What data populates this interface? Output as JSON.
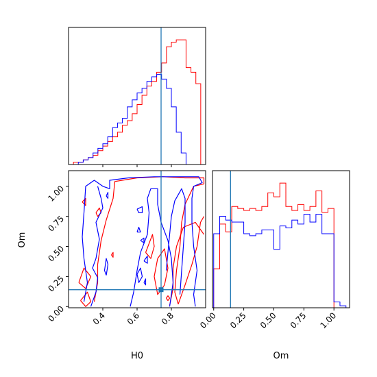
{
  "colors": {
    "series_a": "#ff0000",
    "series_b": "#0000ff",
    "truth": "#1f77b4"
  },
  "chart_data": [
    {
      "type": "histogram",
      "panel": "marginal H0",
      "xlim": [
        0.2,
        1.0
      ],
      "truth": 0.74,
      "ticks": [
        0.4,
        0.6,
        0.8
      ],
      "bins": [
        0.2,
        0.2286,
        0.2571,
        0.2857,
        0.3143,
        0.3429,
        0.3714,
        0.4,
        0.4286,
        0.4571,
        0.4857,
        0.5143,
        0.5429,
        0.5714,
        0.6,
        0.6286,
        0.6571,
        0.6857,
        0.7143,
        0.7429,
        0.7714,
        0.8,
        0.8286,
        0.8571,
        0.8857,
        0.9143,
        0.9429,
        0.9714,
        1.0
      ],
      "series": [
        {
          "color": "#ff0000",
          "values": [
            0,
            1,
            1,
            2,
            3,
            4,
            6,
            8,
            10,
            12,
            14,
            17,
            19,
            22,
            26,
            30,
            34,
            36,
            40,
            44,
            51,
            53,
            54,
            54,
            42,
            40,
            35,
            0
          ]
        },
        {
          "color": "#0000ff",
          "values": [
            0,
            0,
            1,
            2,
            3,
            5,
            7,
            9,
            12,
            16,
            18,
            20,
            25,
            28,
            31,
            33,
            36,
            38,
            39,
            37,
            33,
            25,
            14,
            5,
            0,
            0,
            0,
            0
          ]
        }
      ]
    },
    {
      "type": "contour",
      "panel": "joint H0-Om",
      "xlabel": "H0",
      "ylabel": "Om",
      "xlim": [
        0.2,
        1.0
      ],
      "ylim": [
        -0.01,
        1.13
      ],
      "xticks": [
        "0.4",
        "0.6",
        "0.8"
      ],
      "yticks": [
        "0.00",
        "0.25",
        "0.50",
        "0.75",
        "1.00"
      ],
      "truth": {
        "x": 0.74,
        "y": 0.14
      },
      "series": [
        {
          "color": "#ff0000",
          "contours": [
            [
              [
                0.35,
                0.04
              ],
              [
                0.37,
                0.2
              ],
              [
                0.37,
                0.35
              ],
              [
                0.39,
                0.55
              ],
              [
                0.42,
                0.72
              ],
              [
                0.46,
                0.9
              ],
              [
                0.47,
                1.04
              ],
              [
                0.6,
                1.07
              ],
              [
                0.75,
                1.08
              ],
              [
                0.88,
                1.07
              ],
              [
                0.99,
                1.07
              ],
              [
                0.99,
                1.02
              ],
              [
                0.93,
                1.0
              ],
              [
                0.88,
                0.85
              ],
              [
                0.86,
                0.7
              ],
              [
                0.85,
                0.5
              ],
              [
                0.83,
                0.3
              ],
              [
                0.82,
                0.12
              ],
              [
                0.84,
                0.02
              ]
            ],
            [
              [
                0.84,
                0.02
              ],
              [
                0.88,
                0.18
              ],
              [
                0.92,
                0.35
              ],
              [
                0.95,
                0.5
              ],
              [
                0.97,
                0.7
              ],
              [
                0.99,
                0.75
              ]
            ],
            [
              [
                0.79,
                0.01
              ],
              [
                0.81,
                0.15
              ],
              [
                0.81,
                0.32
              ],
              [
                0.83,
                0.5
              ],
              [
                0.87,
                0.66
              ],
              [
                0.94,
                0.7
              ],
              [
                0.99,
                0.6
              ]
            ],
            [
              [
                0.72,
                0.4
              ],
              [
                0.76,
                0.48
              ],
              [
                0.78,
                0.32
              ],
              [
                0.76,
                0.18
              ],
              [
                0.72,
                0.1
              ],
              [
                0.7,
                0.25
              ],
              [
                0.72,
                0.4
              ]
            ],
            [
              [
                0.26,
                0.2
              ],
              [
                0.3,
                0.15
              ],
              [
                0.33,
                0.25
              ],
              [
                0.29,
                0.32
              ],
              [
                0.26,
                0.2
              ]
            ],
            [
              [
                0.27,
                0.05
              ],
              [
                0.31,
                0.12
              ],
              [
                0.33,
                0.04
              ],
              [
                0.3,
                0.0
              ],
              [
                0.27,
                0.05
              ]
            ],
            [
              [
                0.28,
                0.87
              ],
              [
                0.3,
                0.9
              ],
              [
                0.3,
                0.84
              ],
              [
                0.28,
                0.87
              ]
            ],
            [
              [
                0.36,
                0.78
              ],
              [
                0.38,
                0.82
              ],
              [
                0.39,
                0.78
              ],
              [
                0.37,
                0.75
              ],
              [
                0.36,
                0.78
              ]
            ],
            [
              [
                0.45,
                0.43
              ],
              [
                0.46,
                0.45
              ],
              [
                0.46,
                0.41
              ],
              [
                0.45,
                0.43
              ]
            ],
            [
              [
                0.65,
                0.45
              ],
              [
                0.69,
                0.6
              ],
              [
                0.7,
                0.5
              ],
              [
                0.68,
                0.4
              ],
              [
                0.65,
                0.45
              ]
            ],
            [
              [
                0.77,
                0.07
              ],
              [
                0.78,
                0.09
              ],
              [
                0.79,
                0.07
              ],
              [
                0.78,
                0.05
              ],
              [
                0.77,
                0.07
              ]
            ]
          ]
        },
        {
          "color": "#0000ff",
          "contours": [
            [
              [
                0.29,
                0.04
              ],
              [
                0.31,
                0.2
              ],
              [
                0.29,
                0.4
              ],
              [
                0.28,
                0.58
              ],
              [
                0.29,
                0.78
              ],
              [
                0.3,
                1.0
              ],
              [
                0.35,
                1.05
              ],
              [
                0.4,
                1.0
              ],
              [
                0.44,
                0.98
              ],
              [
                0.44,
                1.05
              ],
              [
                0.55,
                1.07
              ],
              [
                0.7,
                1.08
              ],
              [
                0.85,
                1.08
              ],
              [
                0.96,
                1.08
              ],
              [
                0.98,
                1.03
              ],
              [
                0.93,
                1.0
              ],
              [
                0.92,
                0.9
              ],
              [
                0.92,
                0.7
              ],
              [
                0.93,
                0.5
              ],
              [
                0.95,
                0.3
              ],
              [
                0.93,
                0.1
              ],
              [
                0.94,
                0.0
              ]
            ],
            [
              [
                0.33,
                0.0
              ],
              [
                0.36,
                0.12
              ],
              [
                0.37,
                0.24
              ],
              [
                0.34,
                0.32
              ],
              [
                0.36,
                0.4
              ],
              [
                0.38,
                0.56
              ],
              [
                0.36,
                0.7
              ],
              [
                0.4,
                0.82
              ],
              [
                0.39,
                0.9
              ],
              [
                0.37,
                1.0
              ]
            ],
            [
              [
                0.56,
                0.0
              ],
              [
                0.58,
                0.12
              ],
              [
                0.6,
                0.3
              ],
              [
                0.62,
                0.45
              ],
              [
                0.66,
                0.6
              ],
              [
                0.67,
                0.78
              ],
              [
                0.66,
                0.9
              ],
              [
                0.68,
                0.98
              ],
              [
                0.72,
                0.98
              ],
              [
                0.72,
                0.85
              ],
              [
                0.74,
                0.7
              ],
              [
                0.78,
                0.55
              ],
              [
                0.8,
                0.4
              ],
              [
                0.81,
                0.2
              ],
              [
                0.79,
                0.0
              ]
            ],
            [
              [
                0.77,
                0.3
              ],
              [
                0.78,
                0.45
              ],
              [
                0.79,
                0.6
              ],
              [
                0.8,
                0.75
              ],
              [
                0.82,
                0.88
              ],
              [
                0.86,
                0.98
              ],
              [
                0.88,
                0.9
              ],
              [
                0.88,
                0.7
              ],
              [
                0.87,
                0.5
              ],
              [
                0.86,
                0.3
              ],
              [
                0.85,
                0.1
              ]
            ],
            [
              [
                0.42,
                0.26
              ],
              [
                0.43,
                0.35
              ],
              [
                0.42,
                0.4
              ],
              [
                0.41,
                0.3
              ],
              [
                0.42,
                0.26
              ]
            ],
            [
              [
                0.6,
                0.27
              ],
              [
                0.62,
                0.32
              ],
              [
                0.63,
                0.25
              ],
              [
                0.61,
                0.2
              ],
              [
                0.6,
                0.27
              ]
            ],
            [
              [
                0.6,
                0.81
              ],
              [
                0.63,
                0.83
              ],
              [
                0.63,
                0.78
              ],
              [
                0.61,
                0.78
              ],
              [
                0.6,
                0.81
              ]
            ],
            [
              [
                0.6,
                0.62
              ],
              [
                0.61,
                0.66
              ],
              [
                0.62,
                0.62
              ],
              [
                0.6,
                0.62
              ]
            ],
            [
              [
                0.62,
                0.55
              ],
              [
                0.64,
                0.57
              ],
              [
                0.64,
                0.53
              ],
              [
                0.62,
                0.55
              ]
            ],
            [
              [
                0.64,
                0.38
              ],
              [
                0.66,
                0.42
              ],
              [
                0.66,
                0.36
              ],
              [
                0.64,
                0.38
              ]
            ],
            [
              [
                0.64,
                0.2
              ],
              [
                0.65,
                0.23
              ],
              [
                0.65,
                0.18
              ],
              [
                0.64,
                0.2
              ]
            ],
            [
              [
                0.42,
                0.92
              ],
              [
                0.43,
                0.95
              ],
              [
                0.43,
                0.9
              ],
              [
                0.42,
                0.92
              ]
            ]
          ]
        }
      ]
    },
    {
      "type": "histogram",
      "panel": "marginal Om",
      "xlabel": "Om",
      "xlim": [
        -0.01,
        1.13
      ],
      "truth": 0.14,
      "xticks": [
        "0.00",
        "0.25",
        "0.50",
        "0.75",
        "1.00"
      ],
      "bins": [
        0.0,
        0.05,
        0.1,
        0.15,
        0.2,
        0.25,
        0.3,
        0.35,
        0.4,
        0.45,
        0.5,
        0.55,
        0.6,
        0.65,
        0.7,
        0.75,
        0.8,
        0.85,
        0.9,
        0.95,
        1.0,
        1.05,
        1.1
      ],
      "series": [
        {
          "color": "#ff0000",
          "values": [
            20,
            43,
            39,
            52,
            51,
            50,
            51,
            50,
            52,
            59,
            57,
            64,
            52,
            50,
            53,
            50,
            52,
            60,
            49,
            51,
            0,
            0
          ]
        },
        {
          "color": "#0000ff",
          "values": [
            38,
            47,
            45,
            44,
            44,
            38,
            37,
            38,
            40,
            40,
            30,
            42,
            41,
            45,
            43,
            48,
            44,
            48,
            38,
            38,
            3,
            1
          ]
        }
      ]
    }
  ]
}
